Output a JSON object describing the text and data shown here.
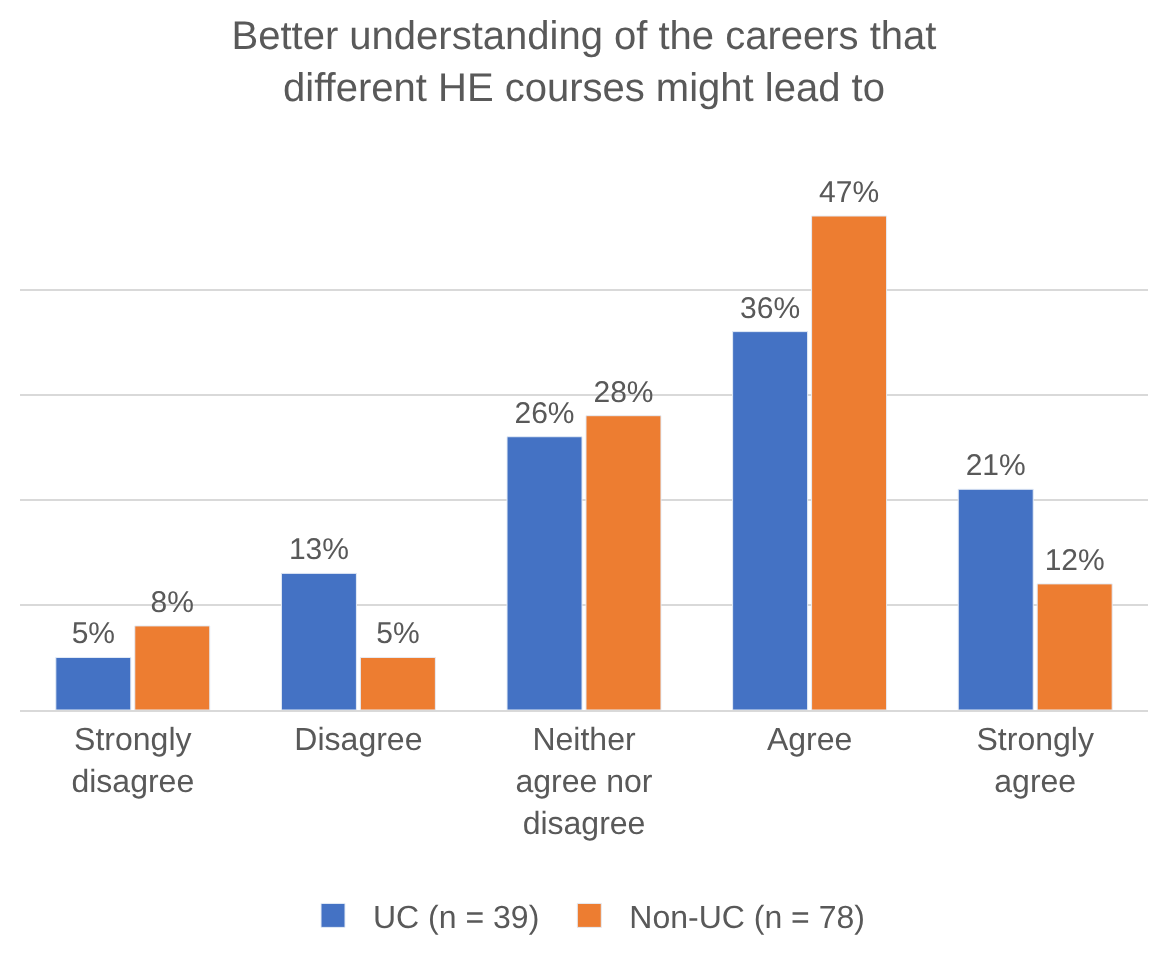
{
  "chart_data": {
    "type": "bar",
    "title": "Better understanding of the careers that different HE courses might lead to",
    "categories": [
      "Strongly disagree",
      "Disagree",
      "Neither agree nor disagree",
      "Agree",
      "Strongly agree"
    ],
    "series": [
      {
        "name": "UC (n = 39)",
        "color": "#4472c4",
        "values": [
          5,
          13,
          26,
          36,
          21
        ],
        "value_labels": [
          "5%",
          "13%",
          "26%",
          "36%",
          "21%"
        ]
      },
      {
        "name": "Non-UC (n = 78)",
        "color": "#ed7d31",
        "values": [
          8,
          5,
          28,
          47,
          12
        ],
        "value_labels": [
          "8%",
          "5%",
          "28%",
          "47%",
          "12%"
        ]
      }
    ],
    "tick_labels": "x",
    "grid": "y",
    "legend": "bottom"
  }
}
